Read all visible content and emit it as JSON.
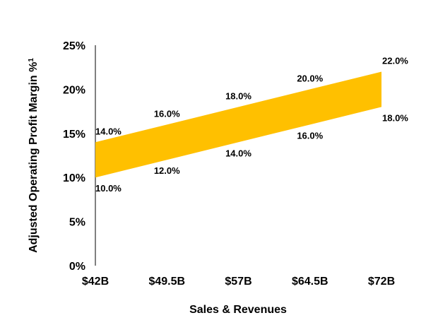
{
  "chart_data": {
    "type": "area",
    "x": [
      "$42B",
      "$49.5B",
      "$57B",
      "$64.5B",
      "$72B"
    ],
    "y_ticks": [
      "0%",
      "5%",
      "10%",
      "15%",
      "20%",
      "25%"
    ],
    "ylim": [
      0,
      25
    ],
    "xlabel": "Sales & Revenues",
    "ylabel": "Adjusted Operating Profit Margin %",
    "ylabel_sup": "1",
    "band_color": "#FFC000",
    "grid": false,
    "series": [
      {
        "name": "",
        "role": "upper",
        "values": [
          14.0,
          16.0,
          18.0,
          20.0,
          22.0
        ],
        "labels": [
          "14.0%",
          "16.0%",
          "18.0%",
          "20.0%",
          "22.0%"
        ]
      },
      {
        "name": "",
        "role": "lower",
        "values": [
          10.0,
          12.0,
          14.0,
          16.0,
          18.0
        ],
        "labels": [
          "10.0%",
          "12.0%",
          "14.0%",
          "16.0%",
          "18.0%"
        ]
      }
    ]
  }
}
